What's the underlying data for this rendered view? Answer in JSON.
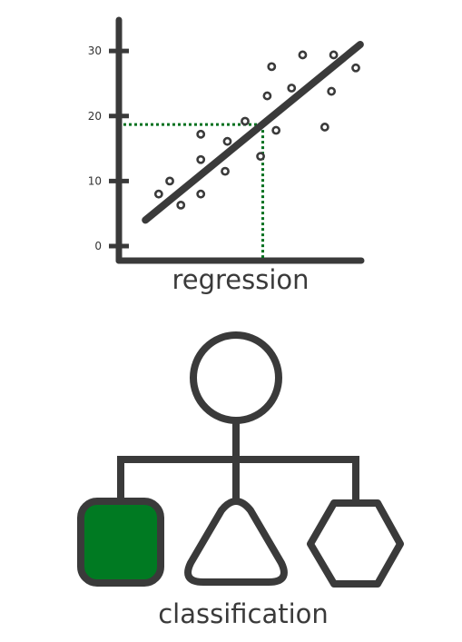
{
  "colors": {
    "stroke": "#3a3a3a",
    "accent": "#007a22",
    "guide": "#00701f",
    "background": "#ffffff"
  },
  "regression": {
    "caption": "regression",
    "y_ticks": [
      "30",
      "20",
      "10",
      "0"
    ]
  },
  "classification": {
    "caption": "classification",
    "root_shape": "circle",
    "child_shapes": [
      "rounded-square",
      "triangle",
      "hexagon"
    ],
    "highlighted_child": "rounded-square"
  },
  "chart_data": {
    "type": "scatter",
    "y_ticks": [
      0,
      10,
      20,
      30
    ],
    "ylim": [
      0,
      32
    ],
    "xlim": [
      0,
      10
    ],
    "points": [
      [
        1.1,
        8
      ],
      [
        1.6,
        10
      ],
      [
        2.1,
        6.3
      ],
      [
        3.0,
        8
      ],
      [
        3.0,
        13.3
      ],
      [
        3.0,
        17.2
      ],
      [
        4.1,
        11.5
      ],
      [
        4.2,
        16.1
      ],
      [
        5.0,
        19.2
      ],
      [
        5.7,
        13.8
      ],
      [
        6.0,
        23.1
      ],
      [
        6.2,
        27.6
      ],
      [
        6.4,
        17.8
      ],
      [
        7.1,
        24.3
      ],
      [
        7.6,
        29.4
      ],
      [
        8.6,
        18.3
      ],
      [
        8.9,
        23.8
      ],
      [
        9.0,
        29.4
      ],
      [
        10.0,
        27.4
      ]
    ],
    "regression_line": {
      "x": [
        0.5,
        10.2
      ],
      "y": [
        4,
        31
      ]
    },
    "guide_point": {
      "x": 5.8,
      "y": 18.7
    }
  }
}
